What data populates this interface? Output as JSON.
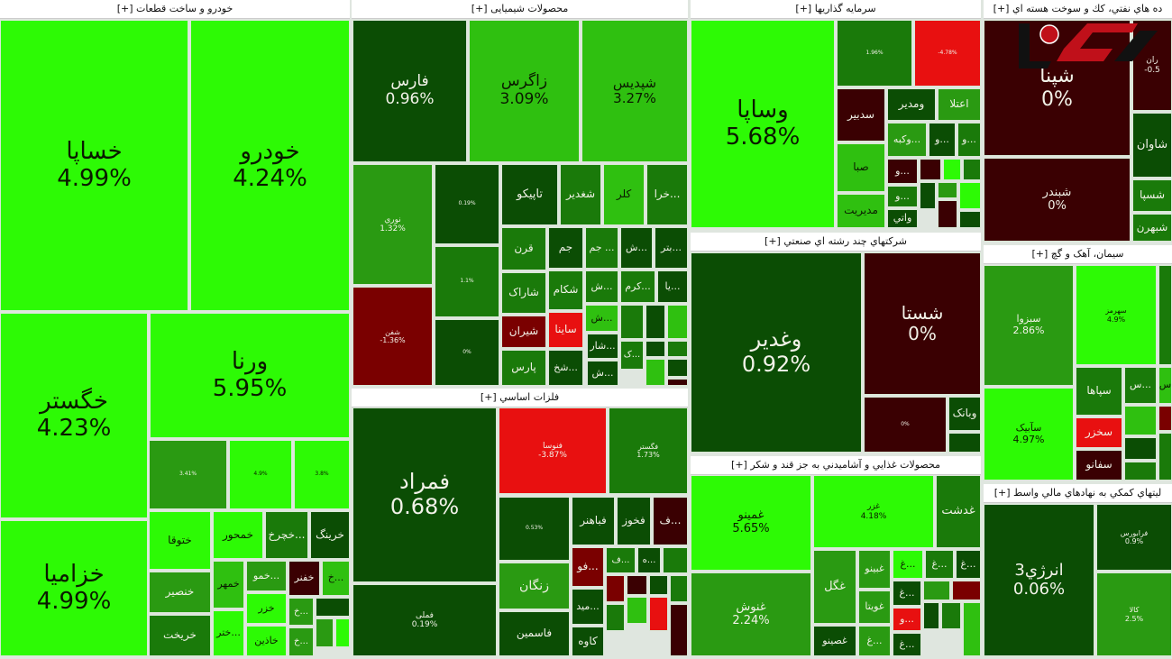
{
  "colors": {
    "bright": "#2dfa05",
    "light": "#2fc010",
    "mid": "#2a9a12",
    "green": "#1a7a0a",
    "dark": "#0b4d04",
    "maroon": "#3a0002",
    "darkred": "#7a0000",
    "red": "#e81010"
  },
  "logo_text": "ركنا",
  "sections": [
    {
      "title": "خودرو و ساخت قطعات [+]",
      "tiles": [
        {
          "symbol": "خساپا",
          "change": "4.99%",
          "color": "bright"
        },
        {
          "symbol": "خودرو",
          "change": "4.24%",
          "color": "bright"
        },
        {
          "symbol": "خگستر",
          "change": "4.23%",
          "color": "bright"
        },
        {
          "symbol": "ورنا",
          "change": "5.95%",
          "color": "bright"
        },
        {
          "symbol": "خزامیا",
          "change": "4.99%",
          "color": "bright"
        },
        {
          "symbol": "",
          "change": "3.41%",
          "color": "mid"
        },
        {
          "symbol": "",
          "change": "4.9%",
          "color": "bright"
        },
        {
          "symbol": "",
          "change": "3.8%",
          "color": "bright"
        },
        {
          "symbol": "ختوقا",
          "change": "",
          "color": "bright"
        },
        {
          "symbol": "خمحور",
          "change": "",
          "color": "bright"
        },
        {
          "symbol": "...خچرخ",
          "change": "",
          "color": "green"
        },
        {
          "symbol": "خرینگ",
          "change": "",
          "color": "dark"
        },
        {
          "symbol": "خنصیر",
          "change": "",
          "color": "mid"
        },
        {
          "symbol": "خریخت",
          "change": "",
          "color": "green"
        },
        {
          "symbol": "خمهر",
          "change": "",
          "color": "light"
        },
        {
          "symbol": "...ختر",
          "change": "",
          "color": "bright"
        },
        {
          "symbol": "...خمو",
          "change": "",
          "color": "mid"
        },
        {
          "symbol": "خفنر",
          "change": "",
          "color": "maroon"
        },
        {
          "symbol": "...خ",
          "change": "",
          "color": "light"
        },
        {
          "symbol": "خزر",
          "change": "",
          "color": "bright"
        },
        {
          "symbol": "خاذین",
          "change": "",
          "color": "bright"
        },
        {
          "symbol": "...خ",
          "change": "",
          "color": "mid"
        },
        {
          "symbol": "...خ",
          "change": "",
          "color": "mid"
        },
        {
          "symbol": "",
          "change": "",
          "color": "dark"
        },
        {
          "symbol": "",
          "change": "",
          "color": "mid"
        },
        {
          "symbol": "",
          "change": "",
          "color": "bright"
        }
      ]
    },
    {
      "title": "محصولات شیمیایی [+]",
      "tiles": [
        {
          "symbol": "فارس",
          "change": "0.96%",
          "color": "dark"
        },
        {
          "symbol": "زاگرس",
          "change": "3.09%",
          "color": "light"
        },
        {
          "symbol": "شپدیس",
          "change": "3.27%",
          "color": "light"
        },
        {
          "symbol": "نوري",
          "change": "1.32%",
          "color": "mid"
        },
        {
          "symbol": "شفن",
          "change": "-1.36%",
          "color": "darkred"
        },
        {
          "symbol": "",
          "change": "0.19%",
          "color": "dark"
        },
        {
          "symbol": "",
          "change": "1.1%",
          "color": "green"
        },
        {
          "symbol": "",
          "change": "0%",
          "color": "dark"
        },
        {
          "symbol": "تاپیکو",
          "change": "",
          "color": "dark"
        },
        {
          "symbol": "شغدیر",
          "change": "",
          "color": "green"
        },
        {
          "symbol": "کلر",
          "change": "",
          "color": "light"
        },
        {
          "symbol": "...خرا",
          "change": "",
          "color": "green"
        },
        {
          "symbol": "قرن",
          "change": "",
          "color": "green"
        },
        {
          "symbol": "جم",
          "change": "",
          "color": "dark"
        },
        {
          "symbol": "... جم",
          "change": "",
          "color": "green"
        },
        {
          "symbol": "...ش",
          "change": "",
          "color": "dark"
        },
        {
          "symbol": "...بتر",
          "change": "",
          "color": "dark"
        },
        {
          "symbol": "شاراک",
          "change": "",
          "color": "green"
        },
        {
          "symbol": "شکام",
          "change": "",
          "color": "green"
        },
        {
          "symbol": "...ش",
          "change": "",
          "color": "green"
        },
        {
          "symbol": "...کرم",
          "change": "",
          "color": "green"
        },
        {
          "symbol": "...یا",
          "change": "",
          "color": "dark"
        },
        {
          "symbol": "شیران",
          "change": "",
          "color": "darkred"
        },
        {
          "symbol": "ساینا",
          "change": "",
          "color": "red"
        },
        {
          "symbol": "...ش",
          "change": "",
          "color": "light"
        },
        {
          "symbol": "...شار",
          "change": "",
          "color": "dark"
        },
        {
          "symbol": "...ش",
          "change": "",
          "color": "dark"
        },
        {
          "symbol": "پارس",
          "change": "",
          "color": "green"
        },
        {
          "symbol": "...شخ",
          "change": "",
          "color": "dark"
        },
        {
          "symbol": "",
          "change": "",
          "color": "green"
        },
        {
          "symbol": "",
          "change": "",
          "color": "dark"
        },
        {
          "symbol": "",
          "change": "",
          "color": "light"
        },
        {
          "symbol": "...ک",
          "change": "",
          "color": "green"
        },
        {
          "symbol": "",
          "change": "",
          "color": "dark"
        },
        {
          "symbol": "",
          "change": "",
          "color": "green"
        },
        {
          "symbol": "",
          "change": "",
          "color": "light"
        },
        {
          "symbol": "",
          "change": "",
          "color": "dark"
        },
        {
          "symbol": "",
          "change": "",
          "color": "maroon"
        }
      ]
    },
    {
      "title": "فلزات اساسي [+]",
      "tiles": [
        {
          "symbol": "فمراد",
          "change": "0.68%",
          "color": "dark"
        },
        {
          "symbol": "فملی",
          "change": "0.19%",
          "color": "dark"
        },
        {
          "symbol": "فنوسا",
          "change": "-3.87%",
          "color": "red"
        },
        {
          "symbol": "فگستر",
          "change": "1.73%",
          "color": "green"
        },
        {
          "symbol": "",
          "change": "0.53%",
          "color": "dark"
        },
        {
          "symbol": "زنگان",
          "change": "",
          "color": "mid"
        },
        {
          "symbol": "فاسمین",
          "change": "",
          "color": "dark"
        },
        {
          "symbol": "فباهنر",
          "change": "",
          "color": "dark"
        },
        {
          "symbol": "فخوز",
          "change": "",
          "color": "dark"
        },
        {
          "symbol": "...ف",
          "change": "",
          "color": "maroon"
        },
        {
          "symbol": "...فو",
          "change": "",
          "color": "darkred"
        },
        {
          "symbol": "...مید",
          "change": "",
          "color": "dark"
        },
        {
          "symbol": "کاوه",
          "change": "",
          "color": "dark"
        },
        {
          "symbol": "...ف",
          "change": "",
          "color": "green"
        },
        {
          "symbol": "...ه",
          "change": "",
          "color": "dark"
        },
        {
          "symbol": "",
          "change": "",
          "color": "green"
        },
        {
          "symbol": "",
          "change": "",
          "color": "darkred"
        },
        {
          "symbol": "",
          "change": "",
          "color": "maroon"
        },
        {
          "symbol": "",
          "change": "",
          "color": "dark"
        },
        {
          "symbol": "",
          "change": "",
          "color": "green"
        },
        {
          "symbol": "",
          "change": "",
          "color": "green"
        },
        {
          "symbol": "",
          "change": "",
          "color": "light"
        },
        {
          "symbol": "",
          "change": "",
          "color": "red"
        },
        {
          "symbol": "",
          "change": "",
          "color": "maroon"
        }
      ]
    },
    {
      "title": "سرمایه گذاریها [+]",
      "tiles": [
        {
          "symbol": "وساپا",
          "change": "5.68%",
          "color": "bright"
        },
        {
          "symbol": "",
          "change": "1.96%",
          "color": "green"
        },
        {
          "symbol": "",
          "change": "-4.78%",
          "color": "red"
        },
        {
          "symbol": "سدبیر",
          "change": "",
          "color": "maroon"
        },
        {
          "symbol": "ومدیر",
          "change": "",
          "color": "dark"
        },
        {
          "symbol": "اعتلا",
          "change": "",
          "color": "mid"
        },
        {
          "symbol": "صبا",
          "change": "",
          "color": "light"
        },
        {
          "symbol": "مدیریت",
          "change": "",
          "color": "light"
        },
        {
          "symbol": "...وکبه",
          "change": "",
          "color": "mid"
        },
        {
          "symbol": "...و",
          "change": "",
          "color": "dark"
        },
        {
          "symbol": "...و",
          "change": "",
          "color": "green"
        },
        {
          "symbol": "...و",
          "change": "",
          "color": "maroon"
        },
        {
          "symbol": "...و",
          "change": "",
          "color": "green"
        },
        {
          "symbol": "واتي",
          "change": "",
          "color": "dark"
        },
        {
          "symbol": "",
          "change": "",
          "color": "maroon"
        },
        {
          "symbol": "",
          "change": "",
          "color": "bright"
        },
        {
          "symbol": "",
          "change": "",
          "color": "green"
        },
        {
          "symbol": "",
          "change": "",
          "color": "dark"
        },
        {
          "symbol": "",
          "change": "",
          "color": "mid"
        },
        {
          "symbol": "",
          "change": "",
          "color": "bright"
        },
        {
          "symbol": "",
          "change": "",
          "color": "maroon"
        },
        {
          "symbol": "",
          "change": "",
          "color": "dark"
        }
      ]
    },
    {
      "title": "شرکتهاي چند رشته اي صنعتي [+]",
      "tiles": [
        {
          "symbol": "وغدیر",
          "change": "0.92%",
          "color": "dark"
        },
        {
          "symbol": "شستا",
          "change": "0%",
          "color": "maroon"
        },
        {
          "symbol": "",
          "change": "0%",
          "color": "maroon"
        },
        {
          "symbol": "وبانک",
          "change": "",
          "color": "dark"
        },
        {
          "symbol": "",
          "change": "",
          "color": "dark"
        }
      ]
    },
    {
      "title": "محصولات غذایي و آشامیدني به جز قند و شکر [+]",
      "tiles": [
        {
          "symbol": "غمینو",
          "change": "5.65%",
          "color": "bright"
        },
        {
          "symbol": "غنوش",
          "change": "2.24%",
          "color": "mid"
        },
        {
          "symbol": "غزر",
          "change": "4.18%",
          "color": "bright"
        },
        {
          "symbol": "غدشت",
          "change": "",
          "color": "green"
        },
        {
          "symbol": "غگل",
          "change": "",
          "color": "mid"
        },
        {
          "symbol": "غصینو",
          "change": "",
          "color": "dark"
        },
        {
          "symbol": "غبینو",
          "change": "",
          "color": "mid"
        },
        {
          "symbol": "غویتا",
          "change": "",
          "color": "mid"
        },
        {
          "symbol": "...غ",
          "change": "",
          "color": "mid"
        },
        {
          "symbol": "...غ",
          "change": "",
          "color": "bright"
        },
        {
          "symbol": "...غ",
          "change": "",
          "color": "green"
        },
        {
          "symbol": "...غ",
          "change": "",
          "color": "dark"
        },
        {
          "symbol": "...غ",
          "change": "",
          "color": "dark"
        },
        {
          "symbol": "...و",
          "change": "",
          "color": "red"
        },
        {
          "symbol": "...غ",
          "change": "",
          "color": "dark"
        },
        {
          "symbol": "",
          "change": "",
          "color": "mid"
        },
        {
          "symbol": "",
          "change": "",
          "color": "darkred"
        },
        {
          "symbol": "",
          "change": "",
          "color": "dark"
        },
        {
          "symbol": "",
          "change": "",
          "color": "green"
        },
        {
          "symbol": "",
          "change": "",
          "color": "light"
        }
      ]
    },
    {
      "title": "ده هاي نفتي، كك و سوخت هسته اي [+]",
      "tiles": [
        {
          "symbol": "شپنا",
          "change": "0%",
          "color": "maroon"
        },
        {
          "symbol": "شبندر",
          "change": "0%",
          "color": "maroon"
        },
        {
          "symbol": "ران",
          "change": "-0.5",
          "color": "maroon"
        },
        {
          "symbol": "شاوان",
          "change": "",
          "color": "dark"
        },
        {
          "symbol": "شسپا",
          "change": "",
          "color": "green"
        },
        {
          "symbol": "شبهرن",
          "change": "",
          "color": "green"
        }
      ]
    },
    {
      "title": "سیمان، آهک و گچ [+]",
      "tiles": [
        {
          "symbol": "سبزوا",
          "change": "2.86%",
          "color": "mid"
        },
        {
          "symbol": "سآبیک",
          "change": "4.97%",
          "color": "bright"
        },
        {
          "symbol": "سهرمز",
          "change": "4.9%",
          "color": "bright"
        },
        {
          "symbol": "",
          "change": "",
          "color": "green"
        },
        {
          "symbol": "سپاها",
          "change": "",
          "color": "green"
        },
        {
          "symbol": "سخزر",
          "change": "",
          "color": "red"
        },
        {
          "symbol": "سفانو",
          "change": "",
          "color": "maroon"
        },
        {
          "symbol": "...س",
          "change": "",
          "color": "green"
        },
        {
          "symbol": "س",
          "change": "",
          "color": "light"
        },
        {
          "symbol": "",
          "change": "",
          "color": "light"
        },
        {
          "symbol": "",
          "change": "",
          "color": "dark"
        },
        {
          "symbol": "",
          "change": "",
          "color": "green"
        },
        {
          "symbol": "",
          "change": "",
          "color": "darkred"
        },
        {
          "symbol": "",
          "change": "",
          "color": "green"
        }
      ]
    },
    {
      "title": "ليتهاي كمكي به نهادهاي مالي واسط [+]",
      "tiles": [
        {
          "symbol": "انرژي3",
          "change": "0.06%",
          "color": "dark"
        },
        {
          "symbol": "فرابورس",
          "change": "0.9%",
          "color": "dark"
        },
        {
          "symbol": "کالا",
          "change": "2.5%",
          "color": "mid"
        }
      ]
    }
  ]
}
